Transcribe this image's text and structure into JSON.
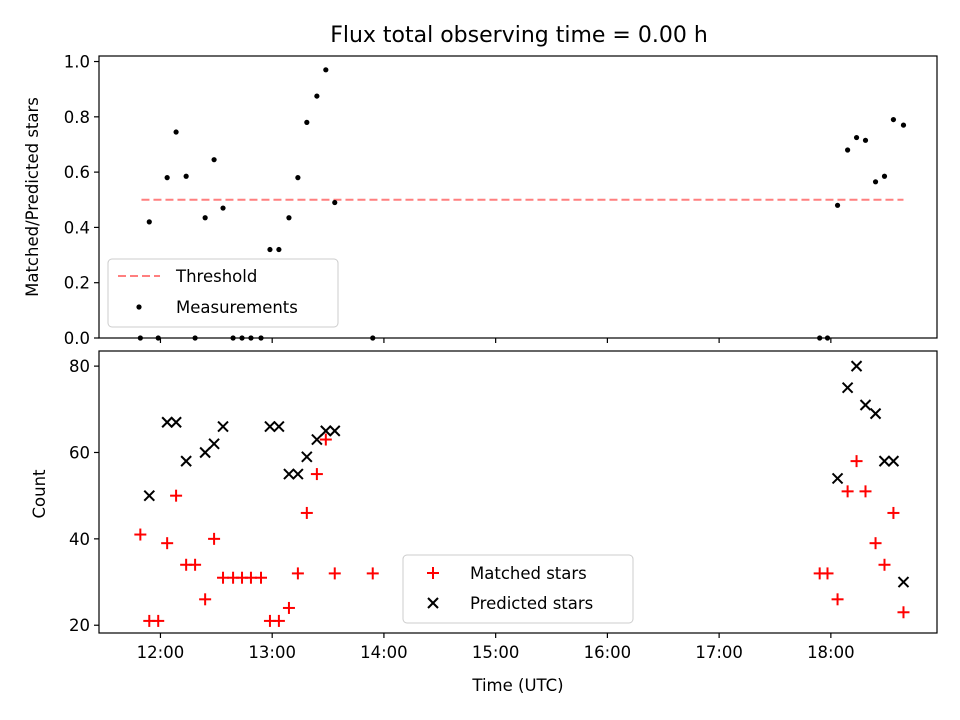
{
  "chart_data": [
    {
      "type": "scatter",
      "title": "Flux total observing time = 0.00 h",
      "xlabel": "",
      "ylabel": "Matched/Predicted stars",
      "xlim": [
        11.45,
        18.95
      ],
      "ylim": [
        0,
        1.02
      ],
      "yticks": [
        0.0,
        0.2,
        0.4,
        0.6,
        0.8,
        1.0
      ],
      "ytick_labels": [
        "0.0",
        "0.2",
        "0.4",
        "0.6",
        "0.8",
        "1.0"
      ],
      "grid": false,
      "legend": "lower-left",
      "threshold": {
        "name": "Threshold",
        "x": [
          11.83,
          18.65
        ],
        "y": 0.5,
        "color": "#ff7f7f"
      },
      "series": [
        {
          "name": "Measurements",
          "color": "#000000",
          "x": [
            11.82,
            11.9,
            11.98,
            12.06,
            12.14,
            12.23,
            12.31,
            12.4,
            12.48,
            12.56,
            12.65,
            12.73,
            12.81,
            12.9,
            12.98,
            13.06,
            13.15,
            13.23,
            13.31,
            13.4,
            13.48,
            13.56,
            13.9,
            17.9,
            17.97,
            18.06,
            18.15,
            18.23,
            18.31,
            18.4,
            18.48,
            18.56,
            18.65
          ],
          "y": [
            0.0,
            0.42,
            0.0,
            0.58,
            0.745,
            0.585,
            0.0,
            0.435,
            0.645,
            0.47,
            0.0,
            0.0,
            0.0,
            0.0,
            0.32,
            0.32,
            0.435,
            0.58,
            0.78,
            0.875,
            0.97,
            0.49,
            0.0,
            0.0,
            0.0,
            0.48,
            0.68,
            0.725,
            0.715,
            0.565,
            0.585,
            0.79,
            0.77
          ]
        }
      ]
    },
    {
      "type": "scatter",
      "title": "",
      "xlabel": "Time (UTC)",
      "ylabel": "Count",
      "xlim": [
        11.45,
        18.95
      ],
      "ylim": [
        18.2,
        83.5
      ],
      "xticks": [
        12,
        13,
        14,
        15,
        16,
        17,
        18
      ],
      "xtick_labels": [
        "12:00",
        "13:00",
        "14:00",
        "15:00",
        "16:00",
        "17:00",
        "18:00"
      ],
      "yticks": [
        20,
        40,
        60,
        80
      ],
      "ytick_labels": [
        "20",
        "40",
        "60",
        "80"
      ],
      "grid": false,
      "legend": "lower-center",
      "series": [
        {
          "name": "Matched stars",
          "marker": "+",
          "color": "#ff0000",
          "x": [
            11.82,
            11.9,
            11.98,
            12.06,
            12.14,
            12.23,
            12.31,
            12.4,
            12.48,
            12.56,
            12.65,
            12.73,
            12.81,
            12.9,
            12.98,
            13.06,
            13.15,
            13.23,
            13.31,
            13.4,
            13.48,
            13.56,
            13.9,
            17.9,
            17.97,
            18.06,
            18.15,
            18.23,
            18.31,
            18.4,
            18.48,
            18.56,
            18.65
          ],
          "y": [
            41,
            21,
            21,
            39,
            50,
            34,
            34,
            26,
            40,
            31,
            31,
            31,
            31,
            31,
            21,
            21,
            24,
            32,
            46,
            55,
            63,
            32,
            32,
            32,
            32,
            26,
            51,
            58,
            51,
            39,
            34,
            46,
            23
          ]
        },
        {
          "name": "Predicted stars",
          "marker": "x",
          "color": "#000000",
          "x": [
            11.9,
            12.06,
            12.14,
            12.23,
            12.4,
            12.48,
            12.56,
            12.98,
            13.06,
            13.15,
            13.23,
            13.31,
            13.4,
            13.48,
            13.56,
            18.06,
            18.15,
            18.23,
            18.31,
            18.4,
            18.48,
            18.56,
            18.65
          ],
          "y": [
            50,
            67,
            67,
            58,
            60,
            62,
            66,
            66,
            66,
            55,
            55,
            59,
            63,
            65,
            65,
            54,
            75,
            80,
            71,
            69,
            58,
            58,
            30
          ]
        }
      ]
    }
  ]
}
